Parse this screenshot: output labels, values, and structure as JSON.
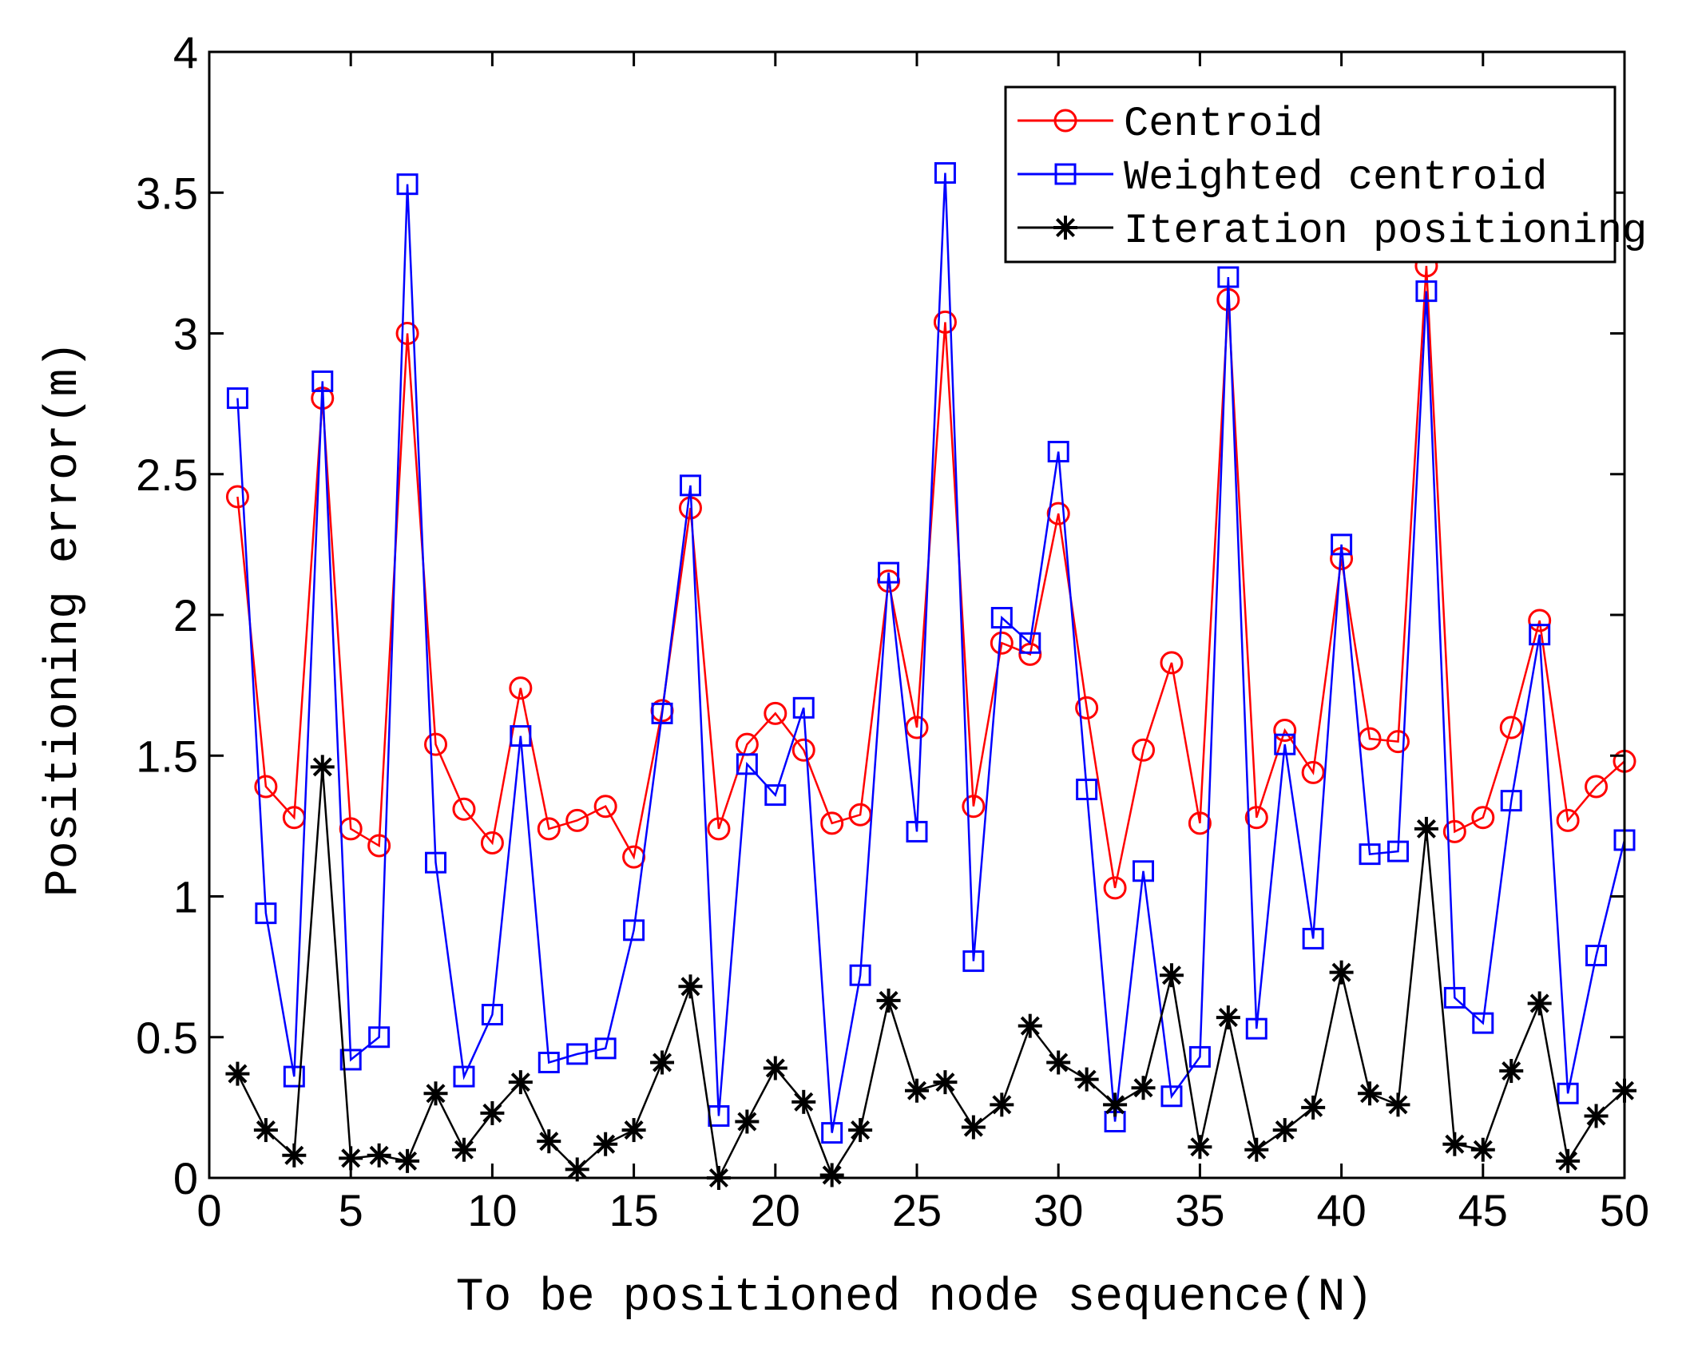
{
  "chart_data": {
    "type": "line",
    "title": "",
    "xlabel": "To be positioned node sequence(N)",
    "ylabel": "Positioning error(m)",
    "xlim": [
      0,
      50
    ],
    "ylim": [
      0,
      4
    ],
    "xticks": [
      0,
      5,
      10,
      15,
      20,
      25,
      30,
      35,
      40,
      45,
      50
    ],
    "yticks": [
      0,
      0.5,
      1,
      1.5,
      2,
      2.5,
      3,
      3.5,
      4
    ],
    "xtick_labels": [
      "0",
      "5",
      "10",
      "15",
      "20",
      "25",
      "30",
      "35",
      "40",
      "45",
      "50"
    ],
    "ytick_labels": [
      "0",
      "0.5",
      "1",
      "1.5",
      "2",
      "2.5",
      "3",
      "3.5",
      "4"
    ],
    "grid": false,
    "legend_position": "top-right",
    "x": [
      1,
      2,
      3,
      4,
      5,
      6,
      7,
      8,
      9,
      10,
      11,
      12,
      13,
      14,
      15,
      16,
      17,
      18,
      19,
      20,
      21,
      22,
      23,
      24,
      25,
      26,
      27,
      28,
      29,
      30,
      31,
      32,
      33,
      34,
      35,
      36,
      37,
      38,
      39,
      40,
      41,
      42,
      43,
      44,
      45,
      46,
      47,
      48,
      49,
      50
    ],
    "series": [
      {
        "name": "Centroid",
        "color": "#ff0000",
        "marker": "circle",
        "values": [
          2.42,
          1.39,
          1.28,
          2.77,
          1.24,
          1.18,
          3.0,
          1.54,
          1.31,
          1.19,
          1.74,
          1.24,
          1.27,
          1.32,
          1.14,
          1.66,
          2.38,
          1.24,
          1.54,
          1.65,
          1.52,
          1.26,
          1.29,
          2.12,
          1.6,
          3.04,
          1.32,
          1.9,
          1.86,
          2.36,
          1.67,
          1.03,
          1.52,
          1.83,
          1.26,
          3.12,
          1.28,
          1.59,
          1.44,
          2.2,
          1.56,
          1.55,
          3.24,
          1.23,
          1.28,
          1.6,
          1.98,
          1.27,
          1.39,
          1.48
        ]
      },
      {
        "name": "Weighted centroid",
        "color": "#0000ff",
        "marker": "square",
        "values": [
          2.77,
          0.94,
          0.36,
          2.83,
          0.42,
          0.5,
          3.53,
          1.12,
          0.36,
          0.58,
          1.57,
          0.41,
          0.44,
          0.46,
          0.88,
          1.65,
          2.46,
          0.22,
          1.47,
          1.36,
          1.67,
          0.16,
          0.72,
          2.15,
          1.23,
          3.57,
          0.77,
          1.99,
          1.9,
          2.58,
          1.38,
          0.2,
          1.09,
          0.29,
          0.43,
          3.2,
          0.53,
          1.54,
          0.85,
          2.25,
          1.15,
          1.16,
          3.15,
          0.64,
          0.55,
          1.34,
          1.93,
          0.3,
          0.79,
          1.2
        ]
      },
      {
        "name": "Iteration positioning",
        "color": "#000000",
        "marker": "asterisk",
        "values": [
          0.37,
          0.17,
          0.08,
          1.46,
          0.07,
          0.08,
          0.06,
          0.3,
          0.1,
          0.23,
          0.34,
          0.13,
          0.03,
          0.12,
          0.17,
          0.41,
          0.68,
          0.0,
          0.2,
          0.39,
          0.27,
          0.01,
          0.17,
          0.63,
          0.31,
          0.34,
          0.18,
          0.26,
          0.54,
          0.41,
          0.35,
          0.26,
          0.32,
          0.72,
          0.11,
          0.57,
          0.1,
          0.17,
          0.25,
          0.73,
          0.3,
          0.26,
          1.24,
          0.12,
          0.1,
          0.38,
          0.62,
          0.06,
          0.22,
          0.31
        ]
      }
    ]
  }
}
